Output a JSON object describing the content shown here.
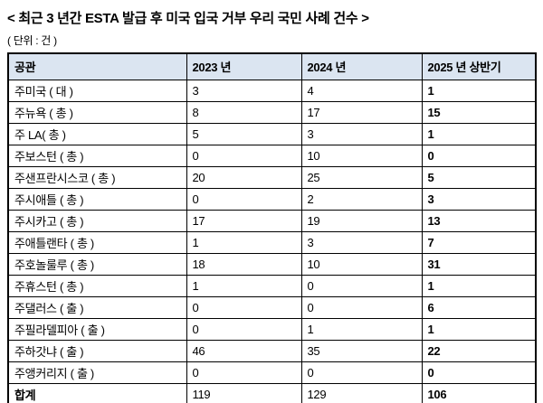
{
  "title": "< 최근 3 년간 ESTA 발급 후 미국 입국 거부 우리 국민 사례 건수 >",
  "unit_note": "( 단위 : 건 )",
  "colors": {
    "header_bg": "#dbe5f1",
    "border": "#000000",
    "text": "#000000",
    "page_bg": "#ffffff"
  },
  "table": {
    "headers": [
      "공관",
      "2023 년",
      "2024 년",
      "2025 년 상반기"
    ],
    "rows": [
      {
        "cells": [
          "주미국 ( 대 )",
          "3",
          "4",
          "1"
        ],
        "total": false
      },
      {
        "cells": [
          "주뉴욕 ( 총 )",
          "8",
          "17",
          "15"
        ],
        "total": false
      },
      {
        "cells": [
          "주 LA( 총 )",
          "5",
          "3",
          "1"
        ],
        "total": false
      },
      {
        "cells": [
          "주보스턴 ( 총 )",
          "0",
          "10",
          "0"
        ],
        "total": false
      },
      {
        "cells": [
          "주샌프란시스코 ( 총 )",
          "20",
          "25",
          "5"
        ],
        "total": false
      },
      {
        "cells": [
          "주시애틀 ( 총 )",
          "0",
          "2",
          "3"
        ],
        "total": false
      },
      {
        "cells": [
          "주시카고 ( 총 )",
          "17",
          "19",
          "13"
        ],
        "total": false
      },
      {
        "cells": [
          "주애틀랜타 ( 총 )",
          "1",
          "3",
          "7"
        ],
        "total": false
      },
      {
        "cells": [
          "주호놀룰루 ( 총 )",
          "18",
          "10",
          "31"
        ],
        "total": false
      },
      {
        "cells": [
          "주휴스턴 ( 총 )",
          "1",
          "0",
          "1"
        ],
        "total": false
      },
      {
        "cells": [
          "주댈러스 ( 출 )",
          "0",
          "0",
          "6"
        ],
        "total": false
      },
      {
        "cells": [
          "주필라델피아 ( 출 )",
          "0",
          "1",
          "1"
        ],
        "total": false
      },
      {
        "cells": [
          "주하갓냐 ( 출 )",
          "46",
          "35",
          "22"
        ],
        "total": false
      },
      {
        "cells": [
          "주앵커리지 ( 출 )",
          "0",
          "0",
          "0"
        ],
        "total": false
      },
      {
        "cells": [
          "합계",
          "119",
          "129",
          "106"
        ],
        "total": true
      }
    ]
  },
  "chart_data": {
    "type": "table",
    "title": "최근 3 년간 ESTA 발급 후 미국 입국 거부 우리 국민 사례 건수",
    "unit": "건",
    "categories": [
      "주미국 (대)",
      "주뉴욕 (총)",
      "주 LA (총)",
      "주보스턴 (총)",
      "주샌프란시스코 (총)",
      "주시애틀 (총)",
      "주시카고 (총)",
      "주애틀랜타 (총)",
      "주호놀룰루 (총)",
      "주휴스턴 (총)",
      "주댈러스 (출)",
      "주필라델피아 (출)",
      "주하갓냐 (출)",
      "주앵커리지 (출)"
    ],
    "series": [
      {
        "name": "2023 년",
        "values": [
          3,
          8,
          5,
          0,
          20,
          0,
          17,
          1,
          18,
          1,
          0,
          0,
          46,
          0
        ],
        "total": 119
      },
      {
        "name": "2024 년",
        "values": [
          4,
          17,
          3,
          10,
          25,
          2,
          19,
          3,
          10,
          0,
          0,
          1,
          35,
          0
        ],
        "total": 129
      },
      {
        "name": "2025 년 상반기",
        "values": [
          1,
          15,
          1,
          0,
          5,
          3,
          13,
          7,
          31,
          1,
          6,
          1,
          22,
          0
        ],
        "total": 106
      }
    ]
  }
}
